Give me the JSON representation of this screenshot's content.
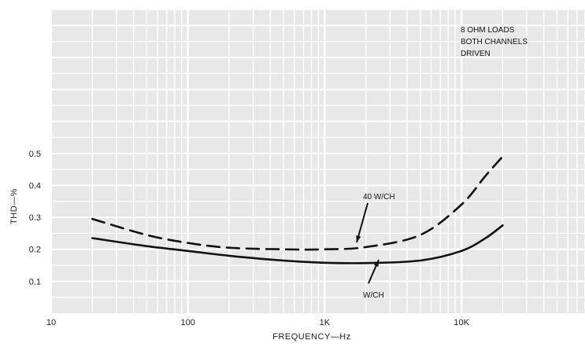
{
  "chart_data": {
    "type": "line",
    "title": "",
    "xlabel": "FREQUENCY—Hz",
    "ylabel": "THD—%",
    "xscale": "log",
    "xlim": [
      10,
      80000
    ],
    "ylim": [
      0,
      0.95
    ],
    "x_ticks": [
      {
        "value": 10,
        "label": "10"
      },
      {
        "value": 100,
        "label": "100"
      },
      {
        "value": 1000,
        "label": "1K"
      },
      {
        "value": 10000,
        "label": "10K"
      }
    ],
    "y_ticks": [
      {
        "value": 0.1,
        "label": "0.1"
      },
      {
        "value": 0.2,
        "label": "0.2"
      },
      {
        "value": 0.3,
        "label": "0.3"
      },
      {
        "value": 0.4,
        "label": "0.4"
      },
      {
        "value": 0.5,
        "label": "0.5"
      }
    ],
    "grid": true,
    "annotation_lines": [
      "8 OHM LOADS",
      "BOTH CHANNELS",
      "DRIVEN"
    ],
    "series": [
      {
        "name": "40 W/CH",
        "style": "dashed",
        "x": [
          20,
          50,
          100,
          200,
          500,
          1000,
          2000,
          5000,
          10000,
          15000,
          20000
        ],
        "y": [
          0.295,
          0.245,
          0.22,
          0.205,
          0.2,
          0.2,
          0.207,
          0.245,
          0.34,
          0.43,
          0.49
        ]
      },
      {
        "name": "W/CH",
        "style": "solid",
        "x": [
          20,
          50,
          100,
          200,
          500,
          1000,
          2000,
          5000,
          10000,
          15000,
          20000
        ],
        "y": [
          0.235,
          0.21,
          0.195,
          0.18,
          0.165,
          0.158,
          0.157,
          0.165,
          0.195,
          0.235,
          0.275
        ]
      }
    ],
    "colors": {
      "plot_bg": "#e8e8e8",
      "grid": "#ffffff",
      "line": "#111111"
    }
  }
}
